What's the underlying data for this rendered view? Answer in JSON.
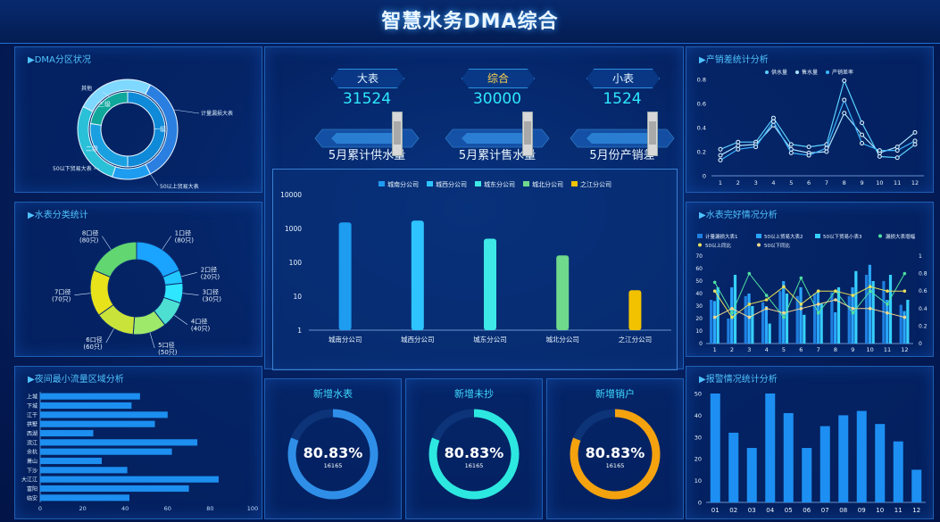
{
  "header": {
    "title": "智慧水务DMA综合"
  },
  "panels": {
    "dma_zone": "▶DMA分区状况",
    "meter_types": "▶水表分类统计",
    "night_flow": "▶夜间最小流量区域分析",
    "supply_sales": "▶产销差统计分析",
    "meter_health": "▶水表完好情况分析",
    "alarms": "▶报警情况统计分析"
  },
  "stats": [
    {
      "tag": "大表",
      "value": "31524",
      "caption": "5月累计供水量",
      "tag_color": "#dff2ff"
    },
    {
      "tag": "综合",
      "value": "30000",
      "caption": "5月累计售水量",
      "tag_color": "#ffd24a"
    },
    {
      "tag": "小表",
      "value": "1524",
      "caption": "5月份产销差",
      "tag_color": "#dff2ff"
    }
  ],
  "gauges": [
    {
      "title": "新增水表",
      "percent_text": "80.83%",
      "count": "16165",
      "fraction": 0.8083,
      "color": "#2f8fe8"
    },
    {
      "title": "新增未抄",
      "percent_text": "80.83%",
      "count": "16165",
      "fraction": 0.8083,
      "color": "#2de8e0"
    },
    {
      "title": "新增销户",
      "percent_text": "80.83%",
      "count": "16165",
      "fraction": 0.8083,
      "color": "#f5a20f"
    }
  ],
  "chart_data": [
    {
      "id": "dma_zone_ring",
      "type": "pie",
      "labels": [
        "一级",
        "二级",
        "三级"
      ],
      "outer_labels": [
        "其他",
        "计量漏损大表",
        "50以上贸易大表",
        "50以下贸易大表"
      ]
    },
    {
      "id": "meter_types_donut",
      "type": "pie",
      "labels": [
        "1口径",
        "2口径",
        "3口径",
        "4口径",
        "5口径",
        "6口径",
        "7口径",
        "8口径"
      ],
      "counts": [
        "(80只)",
        "(20只)",
        "(30只)",
        "(40只)",
        "(50只)",
        "(60只)",
        "(70只)",
        "(80只)"
      ],
      "values": [
        80,
        20,
        30,
        40,
        50,
        60,
        70,
        80
      ],
      "colors": [
        "#1aa3ff",
        "#22c7ff",
        "#2ee6ff",
        "#4de0d2",
        "#9ee86a",
        "#c9e33a",
        "#e8e21b",
        "#62d670"
      ]
    },
    {
      "id": "night_flow_bars",
      "type": "bar",
      "orientation": "horizontal",
      "categories": [
        "上城",
        "下城",
        "江干",
        "拱墅",
        "西湖",
        "滨江",
        "余杭",
        "萧山",
        "下沙",
        "大江江",
        "富阳",
        "临安"
      ],
      "values": [
        47,
        43,
        60,
        54,
        25,
        74,
        62,
        29,
        41,
        84,
        70,
        42
      ],
      "xlim": [
        0,
        100
      ],
      "xticks": [
        0,
        20,
        40,
        60,
        80,
        100
      ]
    },
    {
      "id": "branch_bars",
      "type": "bar",
      "scale": "log",
      "categories": [
        "城南分公司",
        "城西分公司",
        "城东分公司",
        "城北分公司",
        "之江分公司"
      ],
      "series_names": [
        "城南分公司",
        "城西分公司",
        "城东分公司",
        "城北分公司",
        "之江分公司"
      ],
      "values": [
        1500,
        1700,
        500,
        160,
        15
      ],
      "colors": [
        "#1e9cf0",
        "#2ec4ff",
        "#3ee8e6",
        "#6fd98c",
        "#f2c200"
      ],
      "yticks": [
        "1",
        "10",
        "100",
        "1000",
        "10000"
      ]
    },
    {
      "id": "supply_sales_lines",
      "type": "line",
      "x": [
        "1",
        "2",
        "3",
        "4",
        "5",
        "6",
        "7",
        "8",
        "9",
        "10",
        "11",
        "12"
      ],
      "series": [
        {
          "name": "供水量",
          "values": [
            0.22,
            0.28,
            0.28,
            0.48,
            0.26,
            0.24,
            0.26,
            0.79,
            0.44,
            0.16,
            0.15,
            0.26
          ],
          "color": "#5ad0ff"
        },
        {
          "name": "售水量",
          "values": [
            0.17,
            0.25,
            0.26,
            0.42,
            0.22,
            0.19,
            0.2,
            0.52,
            0.34,
            0.19,
            0.24,
            0.36
          ],
          "color": "#a9e4ff"
        },
        {
          "name": "产销差率",
          "values": [
            0.13,
            0.22,
            0.24,
            0.45,
            0.19,
            0.17,
            0.23,
            0.63,
            0.27,
            0.21,
            0.21,
            0.29
          ],
          "color": "#3db7ff"
        }
      ],
      "ylim": [
        0,
        0.8
      ],
      "yticks": [
        "0",
        "0.2",
        "0.4",
        "0.6",
        "0.8"
      ]
    },
    {
      "id": "meter_health_combo",
      "type": "bar",
      "x": [
        "1",
        "2",
        "3",
        "4",
        "5",
        "6",
        "7",
        "8",
        "9",
        "10",
        "11",
        "12"
      ],
      "legend": [
        "计量漏损大表1",
        "50以上贸易大表2",
        "50以下贸易小表3",
        "漏损大表增幅",
        "50以上同比",
        "50以下同比"
      ],
      "series": [
        {
          "name": "计量漏损大表1",
          "values": [
            35,
            20,
            38,
            33,
            42,
            38,
            40,
            41,
            38,
            55,
            50,
            31
          ],
          "color": "#1f7fe0"
        },
        {
          "name": "50以上贸易大表2",
          "values": [
            34,
            45,
            40,
            30,
            50,
            45,
            42,
            25,
            45,
            63,
            35,
            26
          ],
          "color": "#2aa6ff"
        },
        {
          "name": "50以下贸易小表3",
          "values": [
            45,
            55,
            30,
            16,
            40,
            23,
            32,
            45,
            58,
            50,
            55,
            35
          ],
          "color": "#36d0ff"
        }
      ],
      "lines": [
        {
          "name": "漏损大表增幅",
          "values": [
            0.7,
            0.35,
            0.8,
            0.55,
            0.3,
            0.75,
            0.35,
            0.6,
            0.35,
            0.6,
            0.45,
            0.8
          ],
          "color": "#4fe0a0"
        },
        {
          "name": "50以上同比",
          "values": [
            0.6,
            0.3,
            0.45,
            0.5,
            0.65,
            0.45,
            0.6,
            0.6,
            0.55,
            0.65,
            0.6,
            0.6
          ],
          "color": "#e6e05a"
        },
        {
          "name": "50以下同比",
          "values": [
            0.3,
            0.4,
            0.3,
            0.4,
            0.35,
            0.4,
            0.45,
            0.5,
            0.4,
            0.4,
            0.35,
            0.3
          ],
          "color": "#f0d890"
        }
      ],
      "ylim": [
        0,
        70
      ],
      "yticks": [
        "0",
        "10",
        "20",
        "30",
        "40",
        "50",
        "60",
        "70"
      ],
      "y2ticks": [
        "0",
        "0.2",
        "0.4",
        "0.6",
        "0.8",
        "1"
      ]
    },
    {
      "id": "alarm_bars",
      "type": "bar",
      "categories": [
        "01",
        "02",
        "03",
        "04",
        "05",
        "06",
        "07",
        "08",
        "09",
        "10",
        "11",
        "12"
      ],
      "values": [
        50,
        32,
        25,
        50,
        41,
        25,
        35,
        40,
        42,
        36,
        28,
        15
      ],
      "ylim": [
        0,
        50
      ],
      "yticks": [
        "0",
        "10",
        "20",
        "30",
        "40",
        "50"
      ]
    }
  ]
}
